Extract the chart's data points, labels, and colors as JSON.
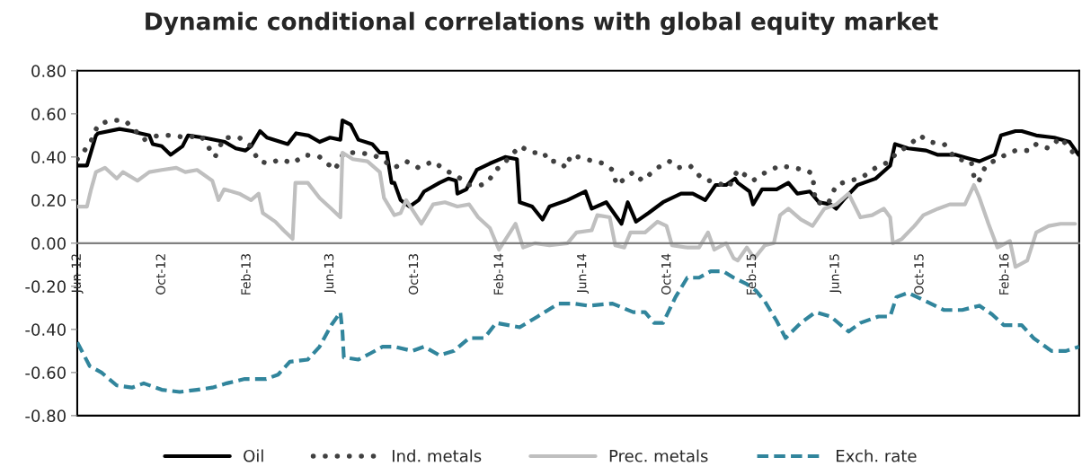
{
  "chart_data": {
    "type": "line",
    "title": "Dynamic conditional correlations with global equity market",
    "xlim": [
      "2012-06-01",
      "2016-05-18"
    ],
    "xticks": [
      {
        "value": "2012-06-01",
        "label": "Jun-12"
      },
      {
        "value": "2012-10-01",
        "label": "Oct-12"
      },
      {
        "value": "2013-02-01",
        "label": "Feb-13"
      },
      {
        "value": "2013-06-01",
        "label": "Jun-13"
      },
      {
        "value": "2013-10-01",
        "label": "Oct-13"
      },
      {
        "value": "2014-02-01",
        "label": "Feb-14"
      },
      {
        "value": "2014-06-01",
        "label": "Jun-14"
      },
      {
        "value": "2014-10-01",
        "label": "Oct-14"
      },
      {
        "value": "2015-02-01",
        "label": "Feb-15"
      },
      {
        "value": "2015-06-01",
        "label": "Jun-15"
      },
      {
        "value": "2015-10-01",
        "label": "Oct-15"
      },
      {
        "value": "2016-02-01",
        "label": "Feb-16"
      }
    ],
    "ylim": [
      -0.8,
      0.8
    ],
    "yticks": [
      {
        "value": -0.8,
        "label": "-0.80"
      },
      {
        "value": -0.6,
        "label": "-0.60"
      },
      {
        "value": -0.4,
        "label": "-0.40"
      },
      {
        "value": -0.2,
        "label": "-0.20"
      },
      {
        "value": 0,
        "label": "0.00"
      },
      {
        "value": 0.2,
        "label": "0.20"
      },
      {
        "value": 0.4,
        "label": "0.40"
      },
      {
        "value": 0.6,
        "label": "0.60"
      },
      {
        "value": 0.8,
        "label": "0.80"
      }
    ],
    "grid": false,
    "legend": "bottom",
    "series": [
      {
        "name": "Oil",
        "color": "#000000",
        "line_style": "solid",
        "x": [
          "2012-06-01",
          "2012-06-15",
          "2012-06-28",
          "2012-07-01",
          "2012-08-01",
          "2012-08-19",
          "2012-08-31",
          "2012-09-13",
          "2012-09-18",
          "2012-10-01",
          "2012-10-14",
          "2012-10-31",
          "2012-11-08",
          "2012-11-30",
          "2012-12-31",
          "2013-01-16",
          "2013-01-30",
          "2013-02-07",
          "2013-02-20",
          "2013-03-02",
          "2013-04-01",
          "2013-04-13",
          "2013-05-01",
          "2013-05-17",
          "2013-06-01",
          "2013-06-16",
          "2013-06-19",
          "2013-07-01",
          "2013-07-12",
          "2013-08-01",
          "2013-08-12",
          "2013-08-22",
          "2013-08-29",
          "2013-09-02",
          "2013-09-11",
          "2013-09-24",
          "2013-10-07",
          "2013-10-15",
          "2013-11-06",
          "2013-11-19",
          "2013-11-30",
          "2013-12-02",
          "2013-12-15",
          "2013-12-30",
          "2014-01-18",
          "2014-02-09",
          "2014-02-26",
          "2014-03-02",
          "2014-03-20",
          "2014-04-04",
          "2014-04-14",
          "2014-05-10",
          "2014-06-05",
          "2014-06-14",
          "2014-07-05",
          "2014-07-27",
          "2014-08-05",
          "2014-08-17",
          "2014-09-04",
          "2014-09-25",
          "2014-10-21",
          "2014-11-07",
          "2014-11-25",
          "2014-12-10",
          "2014-12-25",
          "2015-01-07",
          "2015-01-11",
          "2015-01-28",
          "2015-02-02",
          "2015-02-15",
          "2015-03-08",
          "2015-03-25",
          "2015-04-07",
          "2015-04-25",
          "2015-05-08",
          "2015-05-25",
          "2015-06-02",
          "2015-06-15",
          "2015-07-03",
          "2015-07-29",
          "2015-08-19",
          "2015-08-26",
          "2015-09-14",
          "2015-10-10",
          "2015-10-27",
          "2015-11-22",
          "2015-12-14",
          "2015-12-26",
          "2016-01-17",
          "2016-01-26",
          "2016-02-16",
          "2016-02-25",
          "2016-03-17",
          "2016-04-12",
          "2016-05-04",
          "2016-05-17"
        ],
        "values": [
          0.36,
          0.36,
          0.5,
          0.51,
          0.53,
          0.52,
          0.51,
          0.5,
          0.46,
          0.45,
          0.41,
          0.45,
          0.5,
          0.49,
          0.47,
          0.44,
          0.43,
          0.45,
          0.52,
          0.49,
          0.46,
          0.51,
          0.5,
          0.47,
          0.49,
          0.48,
          0.57,
          0.55,
          0.48,
          0.46,
          0.42,
          0.42,
          0.28,
          0.28,
          0.2,
          0.17,
          0.2,
          0.24,
          0.28,
          0.3,
          0.29,
          0.23,
          0.25,
          0.34,
          0.37,
          0.4,
          0.39,
          0.19,
          0.17,
          0.11,
          0.17,
          0.2,
          0.24,
          0.16,
          0.19,
          0.09,
          0.19,
          0.1,
          0.14,
          0.19,
          0.23,
          0.23,
          0.2,
          0.27,
          0.27,
          0.3,
          0.28,
          0.24,
          0.18,
          0.25,
          0.25,
          0.28,
          0.23,
          0.24,
          0.19,
          0.18,
          0.16,
          0.21,
          0.27,
          0.3,
          0.36,
          0.46,
          0.44,
          0.43,
          0.41,
          0.41,
          0.39,
          0.38,
          0.41,
          0.5,
          0.52,
          0.52,
          0.5,
          0.49,
          0.47,
          0.41
        ]
      },
      {
        "name": "Ind. metals",
        "color": "#404040",
        "line_style": "dotted",
        "x": [
          "2012-06-01",
          "2012-06-19",
          "2012-07-01",
          "2012-07-19",
          "2012-08-08",
          "2012-08-19",
          "2012-09-05",
          "2012-09-26",
          "2012-10-18",
          "2012-11-04",
          "2012-11-26",
          "2012-12-17",
          "2012-12-30",
          "2013-01-21",
          "2013-02-07",
          "2013-02-18",
          "2013-03-05",
          "2013-03-22",
          "2013-04-08",
          "2013-04-26",
          "2013-05-17",
          "2013-06-08",
          "2013-06-21",
          "2013-07-12",
          "2013-08-03",
          "2013-08-24",
          "2013-09-02",
          "2013-09-19",
          "2013-10-07",
          "2013-10-28",
          "2013-11-14",
          "2013-12-02",
          "2013-12-19",
          "2014-01-05",
          "2014-01-14",
          "2014-01-27",
          "2014-02-13",
          "2014-03-02",
          "2014-03-20",
          "2014-04-06",
          "2014-04-12",
          "2014-04-27",
          "2014-05-08",
          "2014-05-15",
          "2014-06-05",
          "2014-07-01",
          "2014-07-14",
          "2014-07-20",
          "2014-08-13",
          "2014-08-26",
          "2014-09-17",
          "2014-10-04",
          "2014-10-17",
          "2014-11-03",
          "2014-11-20",
          "2014-12-12",
          "2014-12-29",
          "2015-01-11",
          "2015-02-02",
          "2015-02-15",
          "2015-03-13",
          "2015-03-30",
          "2015-04-20",
          "2015-04-29",
          "2015-05-03",
          "2015-05-21",
          "2015-06-02",
          "2015-06-20",
          "2015-07-07",
          "2015-07-29",
          "2015-08-19",
          "2015-08-28",
          "2015-09-14",
          "2015-10-01",
          "2015-10-14",
          "2015-11-05",
          "2015-11-22",
          "2015-12-14",
          "2015-12-18",
          "2015-12-24",
          "2016-01-04",
          "2016-01-26",
          "2016-02-16",
          "2016-03-09",
          "2016-03-17",
          "2016-04-04",
          "2016-04-21",
          "2016-05-12"
        ],
        "values": [
          0.39,
          0.46,
          0.55,
          0.57,
          0.57,
          0.54,
          0.48,
          0.5,
          0.5,
          0.49,
          0.5,
          0.4,
          0.49,
          0.49,
          0.45,
          0.38,
          0.37,
          0.39,
          0.37,
          0.41,
          0.4,
          0.34,
          0.42,
          0.42,
          0.41,
          0.37,
          0.35,
          0.38,
          0.35,
          0.38,
          0.34,
          0.31,
          0.27,
          0.27,
          0.28,
          0.34,
          0.39,
          0.45,
          0.42,
          0.42,
          0.38,
          0.38,
          0.35,
          0.41,
          0.39,
          0.37,
          0.34,
          0.27,
          0.33,
          0.29,
          0.35,
          0.38,
          0.35,
          0.36,
          0.3,
          0.28,
          0.26,
          0.34,
          0.29,
          0.32,
          0.36,
          0.35,
          0.34,
          0.32,
          0.19,
          0.18,
          0.27,
          0.29,
          0.3,
          0.35,
          0.38,
          0.42,
          0.45,
          0.5,
          0.47,
          0.46,
          0.39,
          0.38,
          0.31,
          0.28,
          0.36,
          0.4,
          0.43,
          0.43,
          0.46,
          0.44,
          0.49,
          0.41
        ]
      },
      {
        "name": "Prec. metals",
        "color": "#bfbfbf",
        "line_style": "solid",
        "x": [
          "2012-06-01",
          "2012-06-15",
          "2012-06-21",
          "2012-06-28",
          "2012-07-11",
          "2012-07-28",
          "2012-08-06",
          "2012-08-27",
          "2012-09-13",
          "2012-10-01",
          "2012-10-22",
          "2012-11-04",
          "2012-11-21",
          "2012-12-13",
          "2012-12-22",
          "2012-12-30",
          "2013-01-21",
          "2013-02-07",
          "2013-02-18",
          "2013-02-24",
          "2013-03-14",
          "2013-03-26",
          "2013-04-08",
          "2013-04-12",
          "2013-04-30",
          "2013-05-17",
          "2013-06-03",
          "2013-06-16",
          "2013-06-19",
          "2013-07-04",
          "2013-07-25",
          "2013-08-12",
          "2013-08-18",
          "2013-09-02",
          "2013-09-11",
          "2013-09-19",
          "2013-10-11",
          "2013-10-28",
          "2013-11-14",
          "2013-12-02",
          "2013-12-19",
          "2014-01-01",
          "2014-01-18",
          "2014-01-31",
          "2014-02-24",
          "2014-03-07",
          "2014-03-24",
          "2014-04-14",
          "2014-05-10",
          "2014-05-23",
          "2014-06-14",
          "2014-06-22",
          "2014-07-10",
          "2014-07-18",
          "2014-07-31",
          "2014-08-09",
          "2014-08-30",
          "2014-09-17",
          "2014-09-30",
          "2014-10-08",
          "2014-10-30",
          "2014-11-16",
          "2014-11-29",
          "2014-12-08",
          "2014-12-25",
          "2015-01-05",
          "2015-01-11",
          "2015-01-24",
          "2015-02-04",
          "2015-02-19",
          "2015-03-04",
          "2015-03-13",
          "2015-03-25",
          "2015-04-12",
          "2015-04-29",
          "2015-05-16",
          "2015-06-02",
          "2015-06-20",
          "2015-07-07",
          "2015-07-24",
          "2015-08-10",
          "2015-08-19",
          "2015-08-23",
          "2015-09-05",
          "2015-09-23",
          "2015-10-06",
          "2015-10-27",
          "2015-11-13",
          "2015-12-05",
          "2015-12-18",
          "2015-12-26",
          "2016-01-08",
          "2016-01-21",
          "2016-02-08",
          "2016-02-16",
          "2016-03-04",
          "2016-03-17",
          "2016-04-04",
          "2016-04-21",
          "2016-05-12"
        ],
        "values": [
          0.17,
          0.17,
          0.25,
          0.33,
          0.35,
          0.3,
          0.33,
          0.29,
          0.33,
          0.34,
          0.35,
          0.33,
          0.34,
          0.29,
          0.2,
          0.25,
          0.23,
          0.2,
          0.23,
          0.14,
          0.1,
          0.06,
          0.02,
          0.28,
          0.28,
          0.21,
          0.16,
          0.12,
          0.42,
          0.39,
          0.38,
          0.33,
          0.21,
          0.13,
          0.14,
          0.2,
          0.09,
          0.18,
          0.19,
          0.17,
          0.18,
          0.12,
          0.07,
          -0.03,
          0.09,
          -0.02,
          0.0,
          -0.01,
          0.0,
          0.05,
          0.06,
          0.13,
          0.12,
          -0.01,
          -0.02,
          0.05,
          0.05,
          0.1,
          0.08,
          -0.01,
          -0.02,
          -0.02,
          0.05,
          -0.03,
          0.0,
          -0.07,
          -0.08,
          -0.02,
          -0.07,
          -0.01,
          0.0,
          0.13,
          0.16,
          0.11,
          0.08,
          0.16,
          0.18,
          0.23,
          0.12,
          0.13,
          0.16,
          0.12,
          0.0,
          0.02,
          0.08,
          0.13,
          0.16,
          0.18,
          0.18,
          0.27,
          0.21,
          0.09,
          -0.02,
          0.01,
          -0.11,
          -0.08,
          0.05,
          0.08,
          0.09,
          0.09
        ]
      },
      {
        "name": "Exch. rate",
        "color": "#31859c",
        "line_style": "dashed",
        "x": [
          "2012-06-01",
          "2012-06-19",
          "2012-07-06",
          "2012-07-28",
          "2012-08-19",
          "2012-09-05",
          "2012-10-01",
          "2012-10-27",
          "2012-11-21",
          "2012-12-13",
          "2013-01-03",
          "2013-01-29",
          "2013-03-01",
          "2013-03-18",
          "2013-04-04",
          "2013-04-30",
          "2013-05-17",
          "2013-06-03",
          "2013-06-16",
          "2013-06-19",
          "2013-06-21",
          "2013-07-12",
          "2013-07-30",
          "2013-08-16",
          "2013-09-02",
          "2013-09-28",
          "2013-10-15",
          "2013-11-06",
          "2013-11-27",
          "2013-12-19",
          "2014-01-10",
          "2014-01-27",
          "2014-03-02",
          "2014-03-28",
          "2014-04-27",
          "2014-05-19",
          "2014-06-09",
          "2014-07-14",
          "2014-08-13",
          "2014-08-30",
          "2014-09-12",
          "2014-09-25",
          "2014-10-13",
          "2014-10-30",
          "2014-11-16",
          "2014-12-03",
          "2014-12-21",
          "2015-01-05",
          "2015-01-24",
          "2015-02-06",
          "2015-02-19",
          "2015-03-08",
          "2015-03-21",
          "2015-04-12",
          "2015-05-03",
          "2015-05-25",
          "2015-06-20",
          "2015-07-07",
          "2015-08-02",
          "2015-08-19",
          "2015-08-28",
          "2015-09-14",
          "2015-10-10",
          "2015-11-05",
          "2015-12-01",
          "2015-12-26",
          "2016-01-13",
          "2016-01-30",
          "2016-02-25",
          "2016-03-13",
          "2016-04-08",
          "2016-04-29",
          "2016-05-18"
        ],
        "values": [
          -0.46,
          -0.57,
          -0.6,
          -0.66,
          -0.67,
          -0.65,
          -0.68,
          -0.69,
          -0.68,
          -0.67,
          -0.65,
          -0.63,
          -0.63,
          -0.61,
          -0.55,
          -0.54,
          -0.48,
          -0.38,
          -0.32,
          -0.41,
          -0.53,
          -0.54,
          -0.51,
          -0.48,
          -0.48,
          -0.5,
          -0.48,
          -0.52,
          -0.5,
          -0.44,
          -0.44,
          -0.37,
          -0.39,
          -0.34,
          -0.28,
          -0.28,
          -0.29,
          -0.28,
          -0.32,
          -0.32,
          -0.37,
          -0.37,
          -0.25,
          -0.16,
          -0.16,
          -0.13,
          -0.13,
          -0.16,
          -0.19,
          -0.22,
          -0.27,
          -0.36,
          -0.44,
          -0.37,
          -0.32,
          -0.34,
          -0.41,
          -0.37,
          -0.34,
          -0.34,
          -0.25,
          -0.23,
          -0.27,
          -0.31,
          -0.31,
          -0.29,
          -0.33,
          -0.38,
          -0.38,
          -0.44,
          -0.5,
          -0.5,
          -0.48
        ]
      }
    ]
  }
}
